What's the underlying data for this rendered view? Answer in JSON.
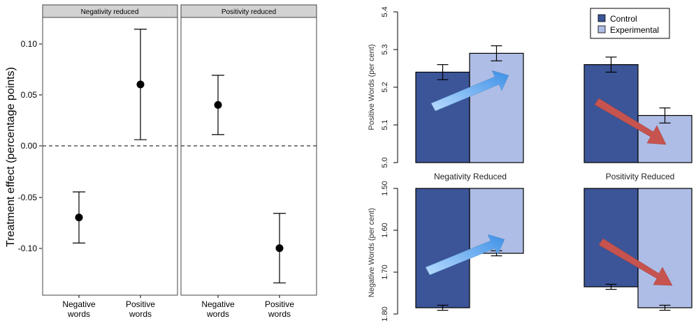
{
  "left_chart": {
    "ylabel": "Treatment effect (percentage points)",
    "yticks": [
      "0.10",
      "0.05",
      "0.00",
      "-0.05",
      "-0.10"
    ],
    "xticks": [
      [
        "Negative",
        "words"
      ],
      [
        "Positive",
        "words"
      ]
    ]
  },
  "right_chart": {
    "legend": [
      "Control",
      "Experimental"
    ],
    "groups": [
      "Negativity Reduced",
      "Positivity Reduced"
    ],
    "top_ylabel": "Positive Words (per cent)",
    "top_yticks": [
      "5.4",
      "5.3",
      "5.2",
      "5.1",
      "5.0"
    ],
    "bottom_ylabel": "Negative Words (per cent)",
    "bottom_yticks": [
      "1.50",
      "1.60",
      "1.70",
      "1.80"
    ]
  },
  "chart_data": [
    {
      "type": "scatter",
      "title": "",
      "ylabel": "Treatment effect (percentage points)",
      "ylim": [
        -0.135,
        0.13
      ],
      "reference_line": 0.0,
      "panels": [
        {
          "strip": "Negativity reduced",
          "points": [
            {
              "x": "Negative words",
              "y": -0.07,
              "lo": -0.095,
              "hi": -0.045
            },
            {
              "x": "Positive words",
              "y": 0.06,
              "lo": 0.006,
              "hi": 0.114
            }
          ]
        },
        {
          "strip": "Positivity reduced",
          "points": [
            {
              "x": "Negative words",
              "y": 0.04,
              "lo": 0.011,
              "hi": 0.069
            },
            {
              "x": "Positive words",
              "y": -0.1,
              "lo": -0.134,
              "hi": -0.066
            }
          ]
        }
      ]
    },
    {
      "type": "bar",
      "title": "",
      "categories": [
        "Negativity Reduced",
        "Positivity Reduced"
      ],
      "ylabel": "Positive Words (per cent)",
      "ylim": [
        5.0,
        5.4
      ],
      "series": [
        {
          "name": "Control",
          "values": [
            5.24,
            5.26
          ],
          "errors": [
            0.02,
            0.02
          ]
        },
        {
          "name": "Experimental",
          "values": [
            5.29,
            5.125
          ],
          "errors": [
            0.02,
            0.02
          ]
        }
      ],
      "colors": {
        "Control": "#3c5598",
        "Experimental": "#aebde6"
      }
    },
    {
      "type": "bar",
      "title": "",
      "categories": [
        "Negativity Reduced",
        "Positivity Reduced"
      ],
      "ylabel": "Negative Words (per cent)",
      "ylim": [
        1.5,
        1.8
      ],
      "inverted_axis": true,
      "series": [
        {
          "name": "Control",
          "values": [
            1.785,
            1.735
          ],
          "errors": [
            0.006,
            0.006
          ]
        },
        {
          "name": "Experimental",
          "values": [
            1.655,
            1.785
          ],
          "errors": [
            0.006,
            0.006
          ]
        }
      ],
      "colors": {
        "Control": "#3c5598",
        "Experimental": "#aebde6"
      }
    }
  ]
}
